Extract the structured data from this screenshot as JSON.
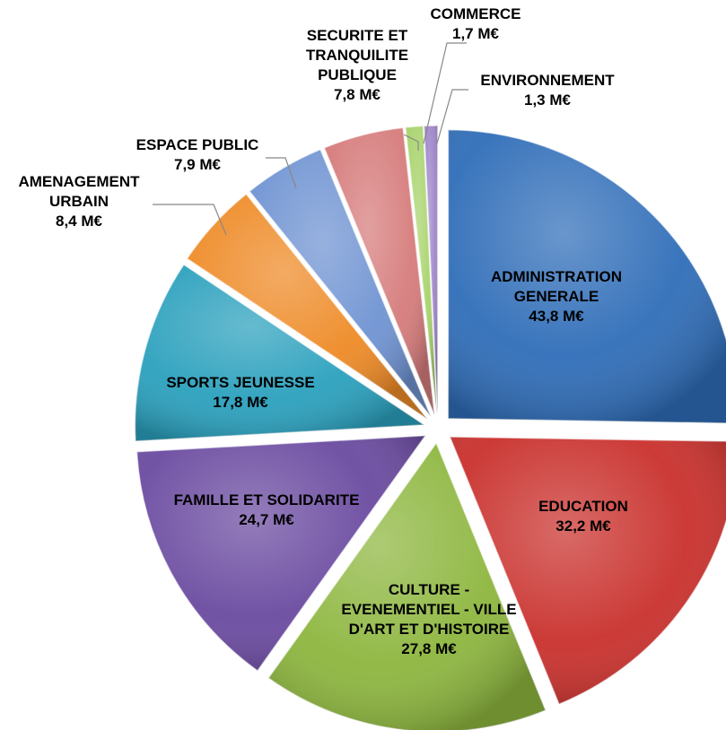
{
  "chart_data": {
    "type": "pie",
    "title": "",
    "legend": "none",
    "slices": [
      {
        "label": [
          "ADMINISTRATION",
          "GENERALE"
        ],
        "value": 43.8,
        "value_label": "43,8 M€",
        "color": "#2f6db8"
      },
      {
        "label": [
          "EDUCATION"
        ],
        "value": 32.2,
        "value_label": "32,2 M€",
        "color": "#c9302c"
      },
      {
        "label": [
          "CULTURE -",
          "EVENEMENTIEL - VILLE",
          "D'ART ET D'HISTOIRE"
        ],
        "value": 27.8,
        "value_label": "27,8 M€",
        "color": "#8db63e"
      },
      {
        "label": [
          "FAMILLE ET SOLIDARITE"
        ],
        "value": 24.7,
        "value_label": "24,7 M€",
        "color": "#6a4aa0"
      },
      {
        "label": [
          "SPORTS JEUNESSE"
        ],
        "value": 17.8,
        "value_label": "17,8 M€",
        "color": "#2aa0bd"
      },
      {
        "label": [
          "AMENAGEMENT",
          "URBAIN"
        ],
        "value": 8.4,
        "value_label": "8,4 M€",
        "color": "#ee8a26"
      },
      {
        "label": [
          "ESPACE PUBLIC"
        ],
        "value": 7.9,
        "value_label": "7,9 M€",
        "color": "#6f93d2"
      },
      {
        "label": [
          "SECURITE ET",
          "TRANQUILITE",
          "PUBLIQUE"
        ],
        "value": 7.8,
        "value_label": "7,8 M€",
        "color": "#d67b7b"
      },
      {
        "label": [
          "COMMERCE"
        ],
        "value": 1.7,
        "value_label": "1,7 M€",
        "color": "#a8d36b"
      },
      {
        "label": [
          "ENVIRONNEMENT"
        ],
        "value": 1.3,
        "value_label": "1,3 M€",
        "color": "#9e86c9"
      }
    ]
  }
}
